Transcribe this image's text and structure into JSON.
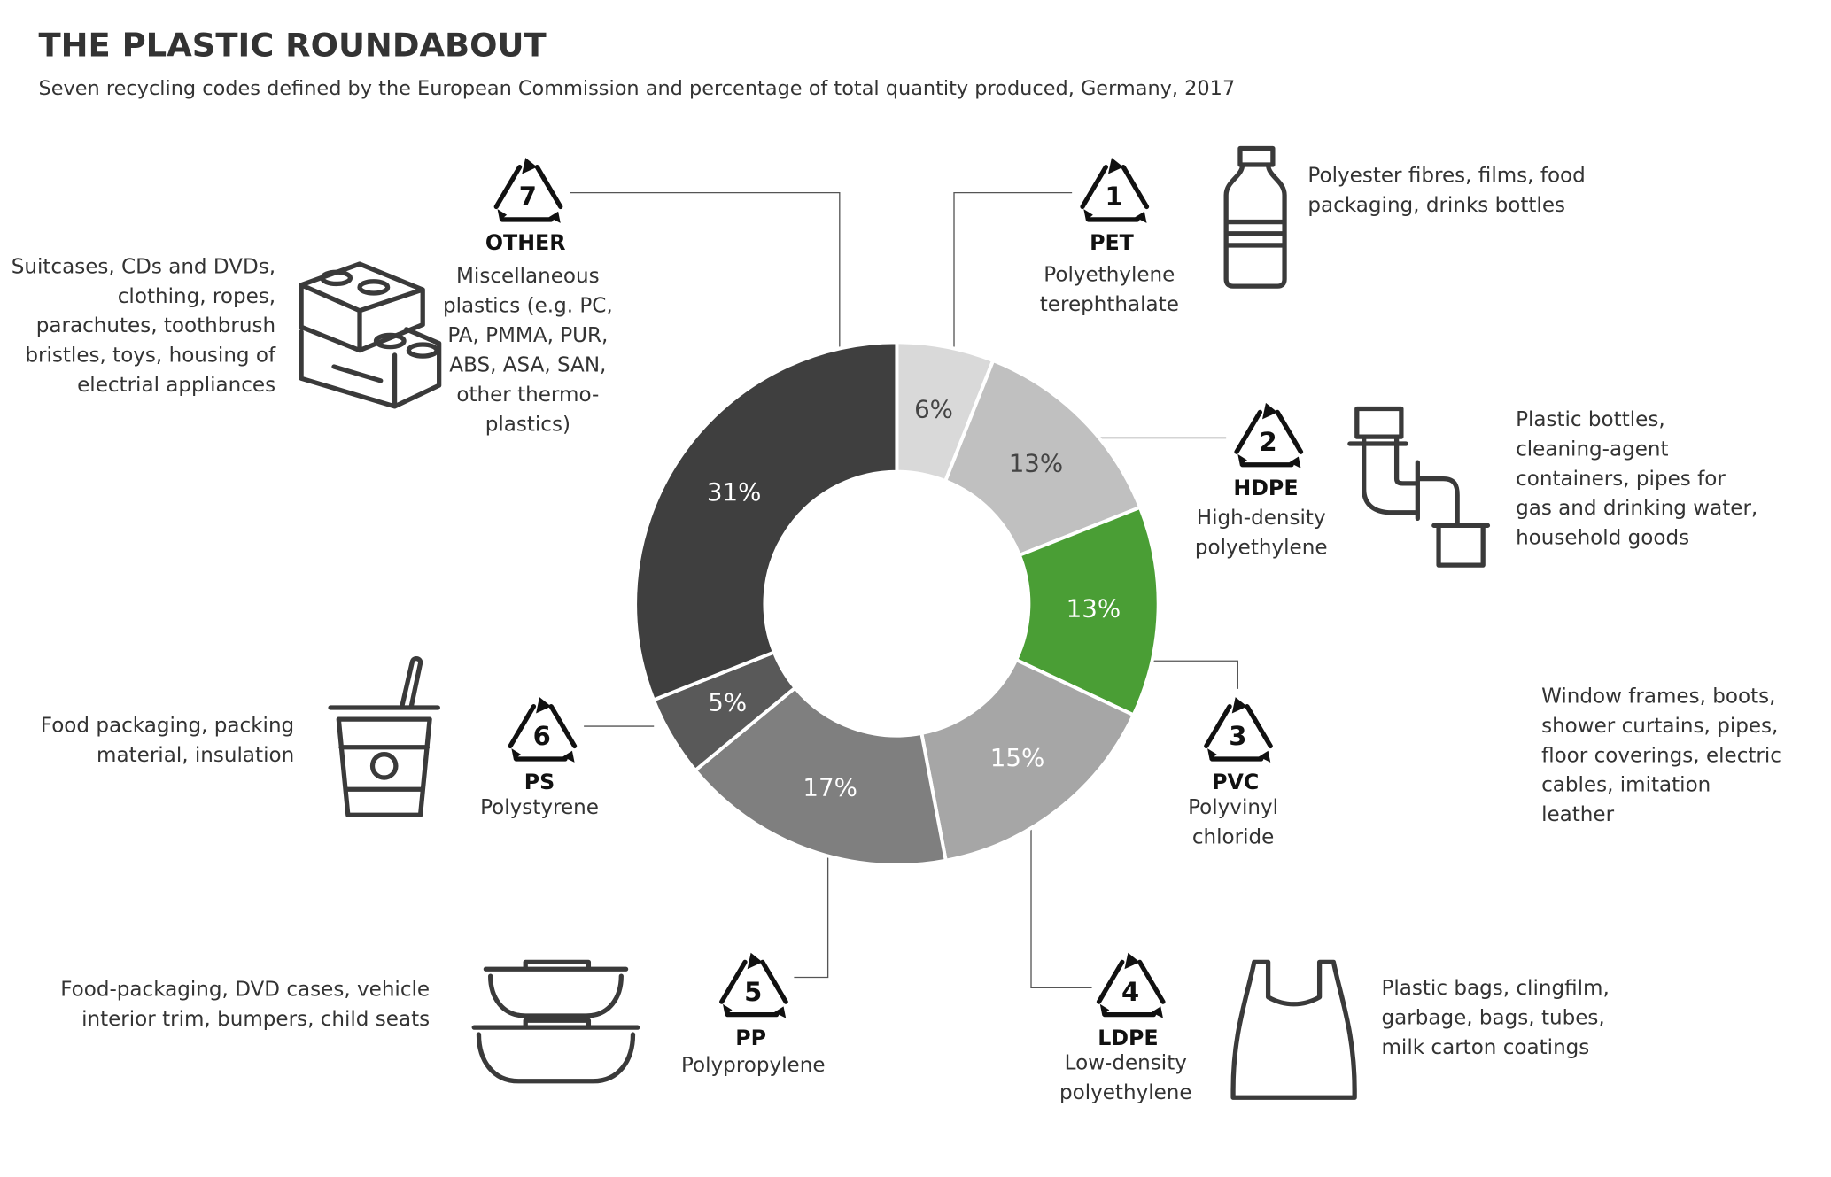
{
  "chart_data": {
    "type": "donut",
    "title": "THE PLASTIC ROUNDABOUT",
    "subtitle": "Seven recycling codes defined by the European Commission and percentage of total quantity produced, Germany, 2017",
    "categories": [
      "PET",
      "HDPE",
      "PVC",
      "LDPE",
      "PP",
      "PS",
      "OTHER"
    ],
    "codes": [
      1,
      2,
      3,
      4,
      5,
      6,
      7
    ],
    "values": [
      6,
      13,
      13,
      15,
      17,
      5,
      31
    ],
    "value_labels": [
      "6%",
      "13%",
      "13%",
      "15%",
      "17%",
      "5%",
      "31%"
    ],
    "colors": [
      "#d9d9d9",
      "#c0c0c0",
      "#4a9e35",
      "#a6a6a6",
      "#7f7f7f",
      "#595959",
      "#3f3f3f"
    ],
    "full_names": [
      [
        "Polyethylene",
        "terephthalate"
      ],
      [
        "High-density",
        "polyethylene"
      ],
      [
        "Polyvinyl",
        "chloride"
      ],
      [
        "Low-density",
        "polyethylene"
      ],
      [
        "Polypropylene"
      ],
      [
        "Polystyrene"
      ],
      [
        "Miscellaneous",
        "plastics (e.g. PC,",
        "PA, PMMA, PUR,",
        "ABS, ASA, SAN,",
        "other thermo-",
        "plastics)"
      ]
    ],
    "uses": [
      [
        "Polyester fibres, films, food",
        "packaging, drinks bottles"
      ],
      [
        "Plastic bottles,",
        "cleaning-agent",
        "containers, pipes for",
        "gas and drinking water,",
        "household goods"
      ],
      [
        "Window frames,  boots,",
        "shower curtains, pipes,",
        "floor coverings, electric",
        "cables, imitation",
        "leather"
      ],
      [
        "Plastic bags, clingfilm,",
        "garbage, bags, tubes,",
        "milk carton coatings"
      ],
      [
        "Food-packaging, DVD cases, vehicle",
        "interior trim, bumpers, child seats"
      ],
      [
        "Food packaging, packing",
        "material, insulation"
      ],
      [
        "Suitcases, CDs and DVDs,",
        "clothing, ropes,",
        "parachutes, toothbrush",
        "bristles, toys, housing of",
        "electrial appliances"
      ]
    ]
  }
}
